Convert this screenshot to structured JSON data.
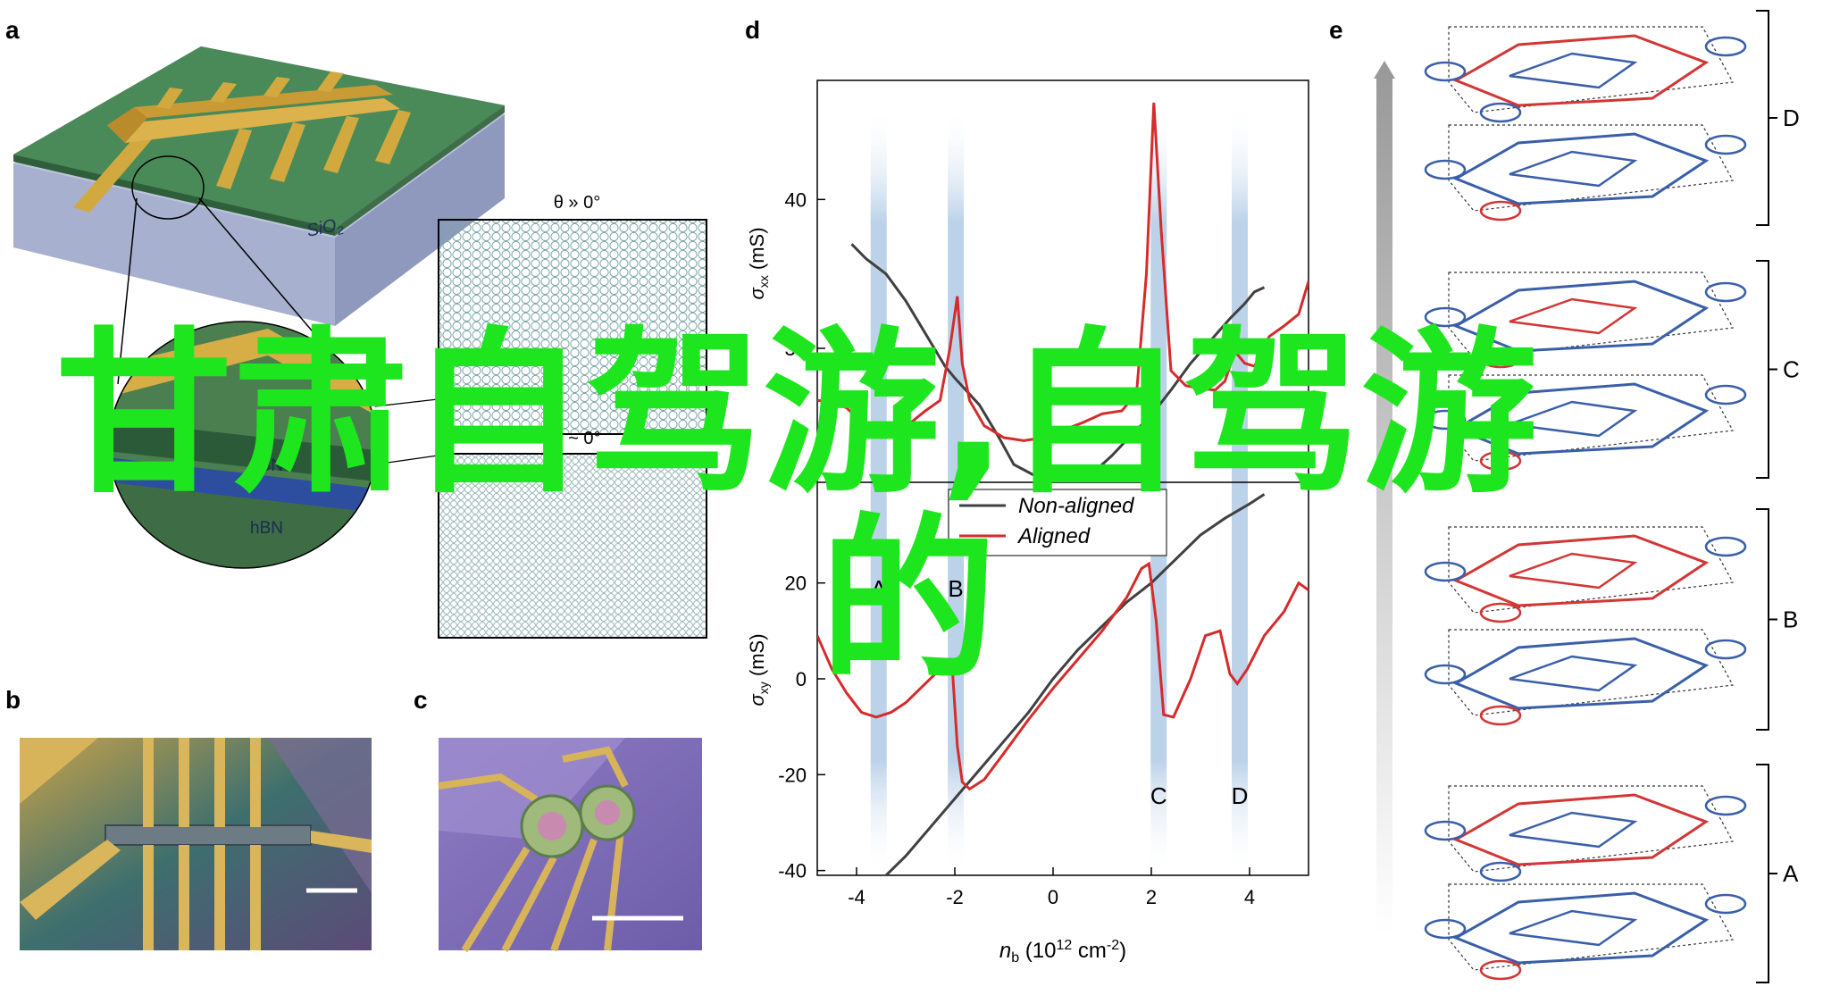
{
  "panels": {
    "a": {
      "label": "a",
      "substrate_label": "SiO",
      "substrate_sub": "2",
      "layer_top": "hBN",
      "layer_bottom": "hBN",
      "inset_top_title": "θ » 0°",
      "inset_bottom_title": "θ ~ 0°"
    },
    "b": {
      "label": "b"
    },
    "c": {
      "label": "c"
    },
    "d": {
      "label": "d"
    },
    "e": {
      "label": "e",
      "brackets": [
        "D",
        "C",
        "B",
        "A"
      ]
    }
  },
  "chart_data": {
    "type": "line",
    "xlabel": "n_b (10^12 cm^-2)",
    "xlim": [
      -4.8,
      5.2
    ],
    "x_ticks": [
      -4,
      -2,
      0,
      2,
      4
    ],
    "top": {
      "ylabel": "σxx (mS)",
      "ylim": [
        21,
        48
      ],
      "y_ticks": [
        20,
        30,
        40
      ],
      "series": [
        {
          "name": "Non-aligned",
          "color": "#404040",
          "points": [
            [
              -4.1,
              37
            ],
            [
              -3.8,
              36
            ],
            [
              -3.4,
              35
            ],
            [
              -3,
              33.2
            ],
            [
              -2.6,
              31
            ],
            [
              -2.2,
              28.8
            ],
            [
              -2,
              28
            ],
            [
              -1.5,
              26.2
            ],
            [
              -1.1,
              24
            ],
            [
              -0.8,
              22.2
            ],
            [
              -0.4,
              21.5
            ],
            [
              0,
              21.1
            ],
            [
              0.4,
              21.2
            ],
            [
              0.8,
              21.6
            ],
            [
              1.2,
              22.8
            ],
            [
              1.6,
              24.2
            ],
            [
              2,
              25.5
            ],
            [
              2.4,
              27.2
            ],
            [
              2.8,
              29
            ],
            [
              3.2,
              30.5
            ],
            [
              3.6,
              32
            ],
            [
              3.9,
              33
            ],
            [
              4.1,
              33.8
            ],
            [
              4.3,
              34.1
            ]
          ]
        },
        {
          "name": "Aligned",
          "color": "#d62b2b",
          "points": [
            [
              -4.8,
              26.5
            ],
            [
              -4.5,
              26.4
            ],
            [
              -4.2,
              26
            ],
            [
              -3.9,
              25
            ],
            [
              -3.5,
              24
            ],
            [
              -3.2,
              24.2
            ],
            [
              -2.9,
              25
            ],
            [
              -2.6,
              25.8
            ],
            [
              -2.3,
              26.5
            ],
            [
              -2.1,
              30
            ],
            [
              -1.95,
              33.5
            ],
            [
              -1.85,
              29
            ],
            [
              -1.7,
              26.5
            ],
            [
              -1.4,
              24.8
            ],
            [
              -1,
              24
            ],
            [
              -0.6,
              23.8
            ],
            [
              -0.2,
              24
            ],
            [
              0.2,
              24.5
            ],
            [
              0.6,
              25
            ],
            [
              1,
              25.6
            ],
            [
              1.4,
              25.8
            ],
            [
              1.7,
              27
            ],
            [
              1.9,
              35
            ],
            [
              2.05,
              46.5
            ],
            [
              2.2,
              38
            ],
            [
              2.4,
              28.5
            ],
            [
              2.7,
              27.5
            ],
            [
              3,
              27.3
            ],
            [
              3.3,
              27.2
            ],
            [
              3.5,
              27.8
            ],
            [
              3.7,
              29.8
            ],
            [
              3.9,
              29
            ],
            [
              4.1,
              28.8
            ],
            [
              4.4,
              30.8
            ],
            [
              4.7,
              31.5
            ],
            [
              5,
              32.3
            ],
            [
              5.2,
              34.5
            ]
          ]
        }
      ]
    },
    "bottom": {
      "ylabel": "σxy (mS)",
      "ylim": [
        -41,
        41
      ],
      "y_ticks": [
        -40,
        -20,
        0,
        20
      ],
      "series": [
        {
          "name": "Non-aligned",
          "color": "#404040",
          "points": [
            [
              -3.5,
              -42
            ],
            [
              -3,
              -37
            ],
            [
              -2.5,
              -31
            ],
            [
              -2,
              -25
            ],
            [
              -1.5,
              -19
            ],
            [
              -1,
              -13
            ],
            [
              -0.5,
              -7
            ],
            [
              0,
              0
            ],
            [
              0.5,
              6
            ],
            [
              1,
              11
            ],
            [
              1.5,
              16
            ],
            [
              2,
              20
            ],
            [
              2.5,
              25
            ],
            [
              3,
              30
            ],
            [
              3.5,
              33.5
            ],
            [
              4,
              36.5
            ],
            [
              4.3,
              38.5
            ]
          ]
        },
        {
          "name": "Aligned",
          "color": "#d62b2b",
          "points": [
            [
              -4.8,
              9
            ],
            [
              -4.5,
              2
            ],
            [
              -4.2,
              -3
            ],
            [
              -3.9,
              -7
            ],
            [
              -3.6,
              -8
            ],
            [
              -3.3,
              -7
            ],
            [
              -3,
              -5
            ],
            [
              -2.7,
              -2
            ],
            [
              -2.4,
              1
            ],
            [
              -2.2,
              3.5
            ],
            [
              -2.05,
              2
            ],
            [
              -1.95,
              -14
            ],
            [
              -1.85,
              -21.5
            ],
            [
              -1.7,
              -23
            ],
            [
              -1.4,
              -21
            ],
            [
              -1,
              -15.5
            ],
            [
              -0.5,
              -8.5
            ],
            [
              0,
              -2
            ],
            [
              0.5,
              4
            ],
            [
              1,
              10
            ],
            [
              1.5,
              17
            ],
            [
              1.8,
              23
            ],
            [
              1.95,
              24
            ],
            [
              2.1,
              12
            ],
            [
              2.25,
              -7.5
            ],
            [
              2.45,
              -8
            ],
            [
              2.8,
              0
            ],
            [
              3.1,
              9
            ],
            [
              3.4,
              10
            ],
            [
              3.6,
              1
            ],
            [
              3.75,
              -1
            ],
            [
              3.95,
              2
            ],
            [
              4.3,
              9
            ],
            [
              4.7,
              14
            ],
            [
              5,
              20
            ],
            [
              5.2,
              18.5
            ]
          ]
        }
      ],
      "annotations": [
        "A",
        "B",
        "C",
        "D"
      ]
    },
    "legend": [
      "Non-aligned",
      "Aligned"
    ]
  },
  "overlay": {
    "line1": "甘肃自驾游,自驾游",
    "line2": "的"
  }
}
